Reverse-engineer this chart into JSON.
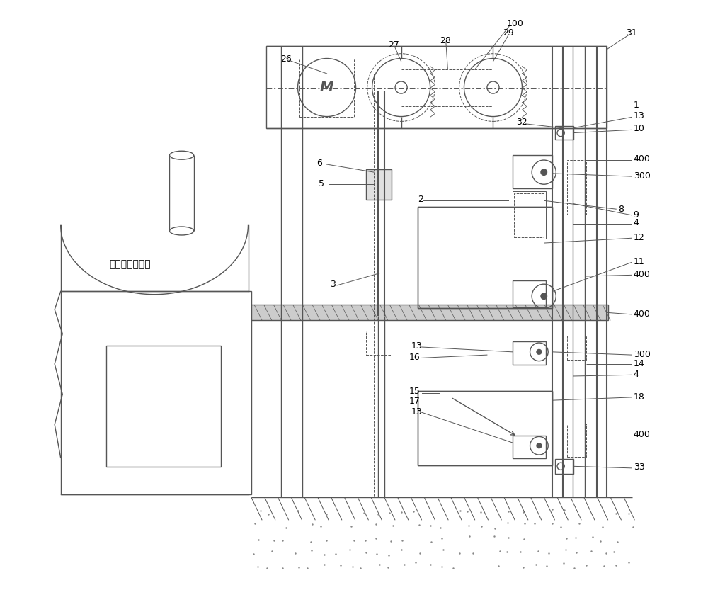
{
  "bg_color": "#ffffff",
  "line_color": "#555555",
  "thin_line": 0.7,
  "med_line": 1.0,
  "thick_line": 1.5,
  "furnace_label": [
    0.13,
    0.435
  ],
  "furnace_label_text": "真空精密铸造炉"
}
